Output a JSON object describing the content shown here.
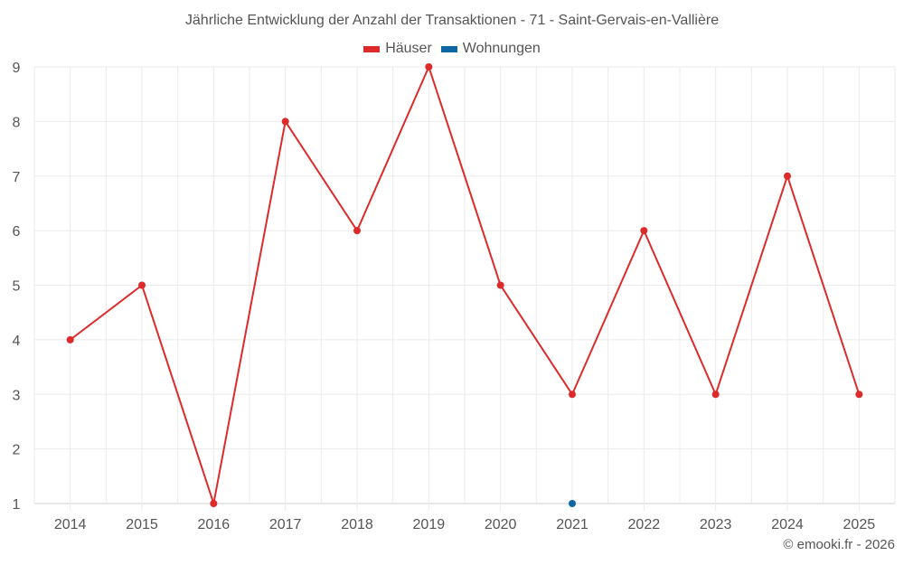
{
  "chart_data": {
    "type": "line",
    "title": "Jährliche Entwicklung der Anzahl der Transaktionen - 71 - Saint-Gervais-en-Vallière",
    "xlabel": "",
    "ylabel": "",
    "categories": [
      "2014",
      "2015",
      "2016",
      "2017",
      "2018",
      "2019",
      "2020",
      "2021",
      "2022",
      "2023",
      "2024",
      "2025"
    ],
    "series": [
      {
        "name": "Häuser",
        "color": "#dd2a2a",
        "values": [
          4,
          5,
          1,
          8,
          6,
          9,
          5,
          3,
          6,
          3,
          7,
          3
        ]
      },
      {
        "name": "Wohnungen",
        "color": "#0e67a3",
        "values": [
          null,
          null,
          null,
          null,
          null,
          null,
          null,
          1,
          null,
          null,
          null,
          null
        ]
      }
    ],
    "ylim": [
      1,
      9
    ],
    "yticks": [
      1,
      2,
      3,
      4,
      5,
      6,
      7,
      8,
      9
    ],
    "grid": true,
    "legend_position": "top"
  },
  "legend": {
    "items": [
      {
        "label": "Häuser",
        "color": "#dd2a2a"
      },
      {
        "label": "Wohnungen",
        "color": "#0e67a3"
      }
    ]
  },
  "credit": "© emooki.fr - 2026"
}
